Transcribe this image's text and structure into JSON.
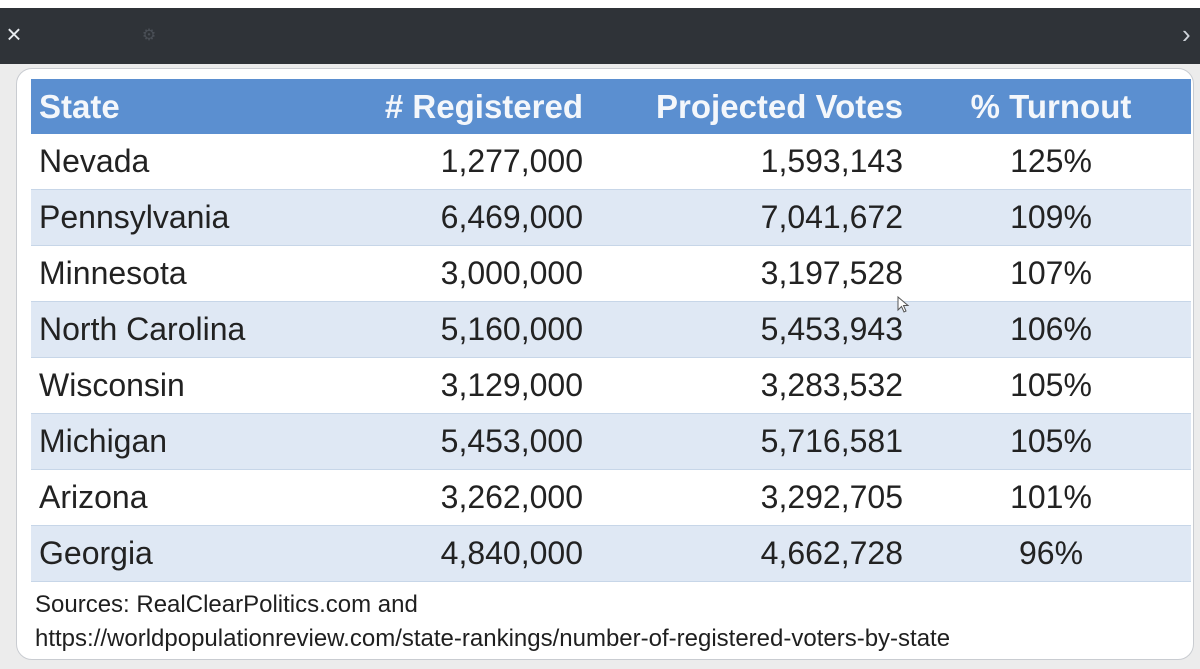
{
  "window": {
    "close_glyph": "×",
    "right_glyph": "›"
  },
  "table": {
    "headers": {
      "state": "State",
      "registered": "# Registered",
      "projected": "Projected Votes",
      "turnout": "% Turnout"
    },
    "rows": [
      {
        "state": "Nevada",
        "registered": "1,277,000",
        "projected": "1,593,143",
        "turnout": "125%"
      },
      {
        "state": "Pennsylvania",
        "registered": "6,469,000",
        "projected": "7,041,672",
        "turnout": "109%"
      },
      {
        "state": "Minnesota",
        "registered": "3,000,000",
        "projected": "3,197,528",
        "turnout": "107%"
      },
      {
        "state": "North Carolina",
        "registered": "5,160,000",
        "projected": "5,453,943",
        "turnout": "106%"
      },
      {
        "state": "Wisconsin",
        "registered": "3,129,000",
        "projected": "3,283,532",
        "turnout": "105%"
      },
      {
        "state": "Michigan",
        "registered": "5,453,000",
        "projected": "5,716,581",
        "turnout": "105%"
      },
      {
        "state": "Arizona",
        "registered": "3,262,000",
        "projected": "3,292,705",
        "turnout": "101%"
      },
      {
        "state": "Georgia",
        "registered": "4,840,000",
        "projected": "4,662,728",
        "turnout": "96%"
      }
    ]
  },
  "sources": {
    "line1": "Sources: RealClearPolitics.com and",
    "line2": "https://worldpopulationreview.com/state-rankings/number-of-registered-voters-by-state"
  },
  "colors": {
    "header_bg": "#5b8fd0",
    "band_bg": "#dfe8f4",
    "titlebar_bg": "#2f3338"
  }
}
